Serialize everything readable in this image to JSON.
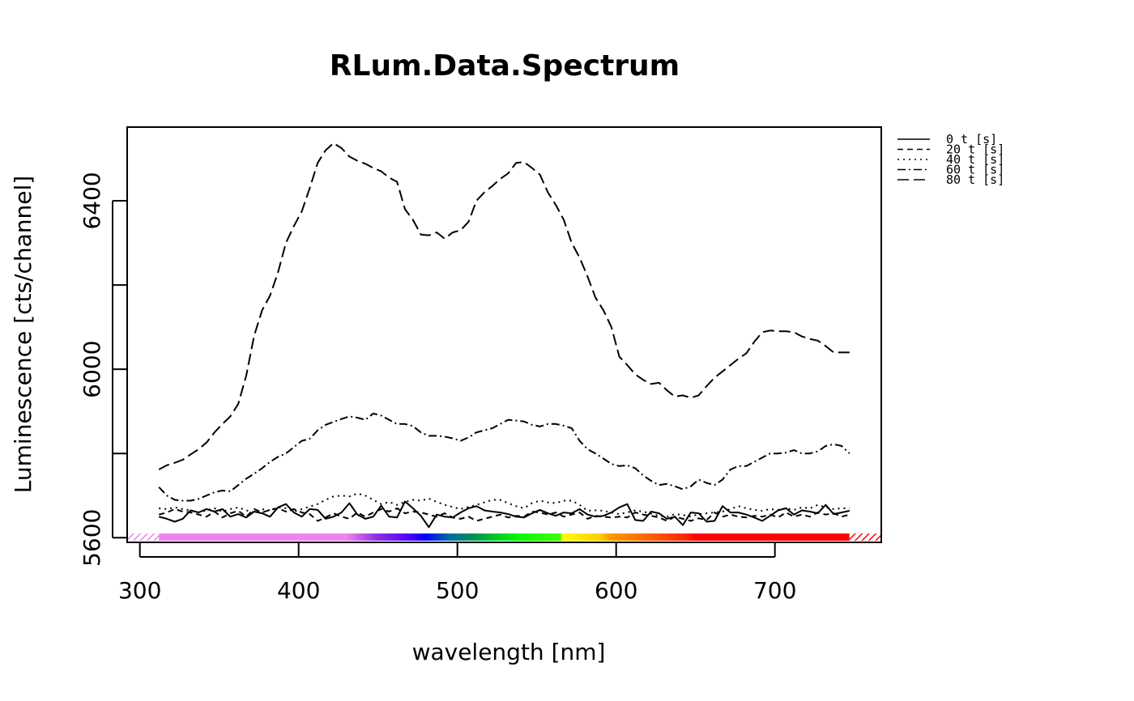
{
  "chart_data": {
    "type": "line",
    "title": "RLum.Data.Spectrum",
    "xlabel": "wavelength [nm]",
    "ylabel": "Luminescence [cts/channel]",
    "xlim": [
      292,
      767
    ],
    "ylim": [
      5589,
      6575
    ],
    "x_ticks": [
      300,
      400,
      500,
      600,
      700
    ],
    "y_ticks": [
      5600,
      5800,
      6000,
      6200,
      6400
    ],
    "y_tick_labels": [
      5600,
      6000,
      6400
    ],
    "grid": false,
    "legend_position": "right-top-outside",
    "legend": [
      "0 t [s]",
      "20 t [s]",
      "40 t [s]",
      "60 t [s]",
      "80 t [s]"
    ],
    "colors": {
      "line": "#000000",
      "background": "#ffffff"
    },
    "color_bar": {
      "range": [
        312,
        747
      ],
      "stops": [
        {
          "x": 312,
          "color": "#ee82ee"
        },
        {
          "x": 430,
          "color": "#ee82ee"
        },
        {
          "x": 450,
          "color": "#8a2be2"
        },
        {
          "x": 470,
          "color": "#4b00ff"
        },
        {
          "x": 480,
          "color": "#0000ff"
        },
        {
          "x": 495,
          "color": "#006aa0"
        },
        {
          "x": 510,
          "color": "#009050"
        },
        {
          "x": 525,
          "color": "#00cc20"
        },
        {
          "x": 540,
          "color": "#00ff00"
        },
        {
          "x": 565,
          "color": "#40ff00"
        },
        {
          "x": 566,
          "color": "#ffff00"
        },
        {
          "x": 580,
          "color": "#ffe000"
        },
        {
          "x": 590,
          "color": "#ffcc00"
        },
        {
          "x": 596,
          "color": "#ff9900"
        },
        {
          "x": 625,
          "color": "#ff5500"
        },
        {
          "x": 645,
          "color": "#ff2000"
        },
        {
          "x": 650,
          "color": "#ff0000"
        },
        {
          "x": 747,
          "color": "#ff0000"
        }
      ]
    },
    "x": [
      312,
      317,
      322,
      327,
      332,
      337,
      342,
      347,
      352,
      357,
      362,
      367,
      372,
      377,
      382,
      387,
      392,
      397,
      402,
      407,
      412,
      417,
      422,
      427,
      432,
      437,
      442,
      447,
      452,
      457,
      462,
      467,
      472,
      477,
      482,
      487,
      492,
      497,
      502,
      507,
      512,
      517,
      522,
      527,
      532,
      537,
      542,
      547,
      552,
      557,
      562,
      567,
      572,
      577,
      582,
      587,
      592,
      597,
      602,
      607,
      612,
      617,
      622,
      627,
      632,
      637,
      642,
      647,
      652,
      657,
      662,
      667,
      672,
      677,
      682,
      687,
      692,
      697,
      702,
      707,
      712,
      717,
      722,
      727,
      732,
      737,
      742,
      747
    ],
    "series": [
      {
        "name": "0 t [s]",
        "dash": "",
        "values": [
          5650,
          5645,
          5638,
          5645,
          5665,
          5660,
          5668,
          5662,
          5668,
          5650,
          5656,
          5648,
          5662,
          5658,
          5650,
          5672,
          5680,
          5660,
          5650,
          5668,
          5666,
          5645,
          5650,
          5660,
          5682,
          5655,
          5645,
          5650,
          5676,
          5650,
          5648,
          5686,
          5670,
          5652,
          5625,
          5655,
          5650,
          5648,
          5660,
          5670,
          5675,
          5665,
          5662,
          5660,
          5656,
          5650,
          5648,
          5658,
          5666,
          5658,
          5652,
          5660,
          5658,
          5668,
          5655,
          5650,
          5652,
          5660,
          5672,
          5680,
          5642,
          5640,
          5662,
          5658,
          5645,
          5650,
          5630,
          5660,
          5658,
          5638,
          5640,
          5675,
          5660,
          5660,
          5655,
          5648,
          5640,
          5652,
          5665,
          5670,
          5655,
          5665,
          5662,
          5658,
          5678,
          5656,
          5660,
          5664
        ]
      },
      {
        "name": "20 t [s]",
        "dash": "7,5",
        "values": [
          5655,
          5660,
          5668,
          5662,
          5660,
          5655,
          5650,
          5662,
          5648,
          5658,
          5664,
          5650,
          5668,
          5660,
          5666,
          5670,
          5662,
          5668,
          5660,
          5656,
          5640,
          5648,
          5658,
          5650,
          5645,
          5660,
          5650,
          5660,
          5668,
          5662,
          5670,
          5658,
          5662,
          5660,
          5655,
          5650,
          5658,
          5648,
          5645,
          5650,
          5640,
          5645,
          5650,
          5655,
          5648,
          5652,
          5650,
          5662,
          5660,
          5655,
          5660,
          5650,
          5655,
          5660,
          5645,
          5652,
          5650,
          5648,
          5650,
          5648,
          5660,
          5655,
          5652,
          5648,
          5640,
          5650,
          5645,
          5640,
          5646,
          5642,
          5660,
          5650,
          5655,
          5650,
          5648,
          5652,
          5650,
          5655,
          5648,
          5660,
          5650,
          5655,
          5650,
          5660,
          5655,
          5658,
          5650,
          5655
        ]
      },
      {
        "name": "40 t [s]",
        "dash": "2,5",
        "values": [
          5670,
          5668,
          5672,
          5668,
          5665,
          5660,
          5665,
          5670,
          5662,
          5668,
          5672,
          5665,
          5660,
          5668,
          5665,
          5672,
          5670,
          5662,
          5668,
          5674,
          5680,
          5690,
          5698,
          5700,
          5698,
          5705,
          5700,
          5690,
          5680,
          5685,
          5678,
          5685,
          5690,
          5688,
          5693,
          5685,
          5678,
          5673,
          5668,
          5673,
          5678,
          5684,
          5690,
          5690,
          5682,
          5675,
          5670,
          5682,
          5688,
          5684,
          5682,
          5688,
          5688,
          5678,
          5664,
          5665,
          5664,
          5660,
          5656,
          5660,
          5665,
          5662,
          5657,
          5652,
          5650,
          5656,
          5654,
          5650,
          5656,
          5658,
          5660,
          5662,
          5668,
          5675,
          5670,
          5666,
          5664,
          5668,
          5666,
          5670,
          5666,
          5672,
          5670,
          5678,
          5672,
          5668,
          5670,
          5670
        ]
      },
      {
        "name": "60 t [s]",
        "dash": "10,4,2,4",
        "values": [
          5720,
          5700,
          5690,
          5688,
          5688,
          5692,
          5700,
          5708,
          5712,
          5710,
          5725,
          5740,
          5752,
          5765,
          5780,
          5792,
          5800,
          5815,
          5830,
          5835,
          5855,
          5868,
          5875,
          5882,
          5888,
          5885,
          5880,
          5895,
          5890,
          5880,
          5870,
          5870,
          5865,
          5850,
          5842,
          5842,
          5840,
          5836,
          5830,
          5838,
          5850,
          5855,
          5860,
          5870,
          5880,
          5878,
          5876,
          5868,
          5864,
          5870,
          5870,
          5866,
          5860,
          5830,
          5810,
          5800,
          5788,
          5775,
          5770,
          5772,
          5765,
          5748,
          5735,
          5725,
          5728,
          5722,
          5715,
          5722,
          5738,
          5730,
          5725,
          5738,
          5762,
          5770,
          5770,
          5780,
          5790,
          5800,
          5800,
          5802,
          5808,
          5800,
          5800,
          5805,
          5818,
          5822,
          5818,
          5800
        ]
      },
      {
        "name": "80 t [s]",
        "dash": "14,6",
        "values": [
          5762,
          5772,
          5778,
          5785,
          5798,
          5810,
          5826,
          5850,
          5870,
          5888,
          5918,
          5985,
          6080,
          6140,
          6175,
          6230,
          6300,
          6340,
          6375,
          6430,
          6490,
          6520,
          6537,
          6525,
          6505,
          6495,
          6488,
          6478,
          6470,
          6455,
          6445,
          6380,
          6355,
          6320,
          6318,
          6325,
          6310,
          6325,
          6330,
          6350,
          6400,
          6420,
          6435,
          6452,
          6465,
          6490,
          6492,
          6478,
          6462,
          6420,
          6390,
          6355,
          6300,
          6265,
          6220,
          6170,
          6140,
          6100,
          6030,
          6010,
          5988,
          5975,
          5965,
          5968,
          5950,
          5935,
          5938,
          5932,
          5938,
          5960,
          5980,
          5995,
          6010,
          6025,
          6038,
          6065,
          6088,
          6092,
          6090,
          6090,
          6088,
          6078,
          6072,
          6068,
          6055,
          6040,
          6040,
          6040
        ]
      }
    ]
  }
}
